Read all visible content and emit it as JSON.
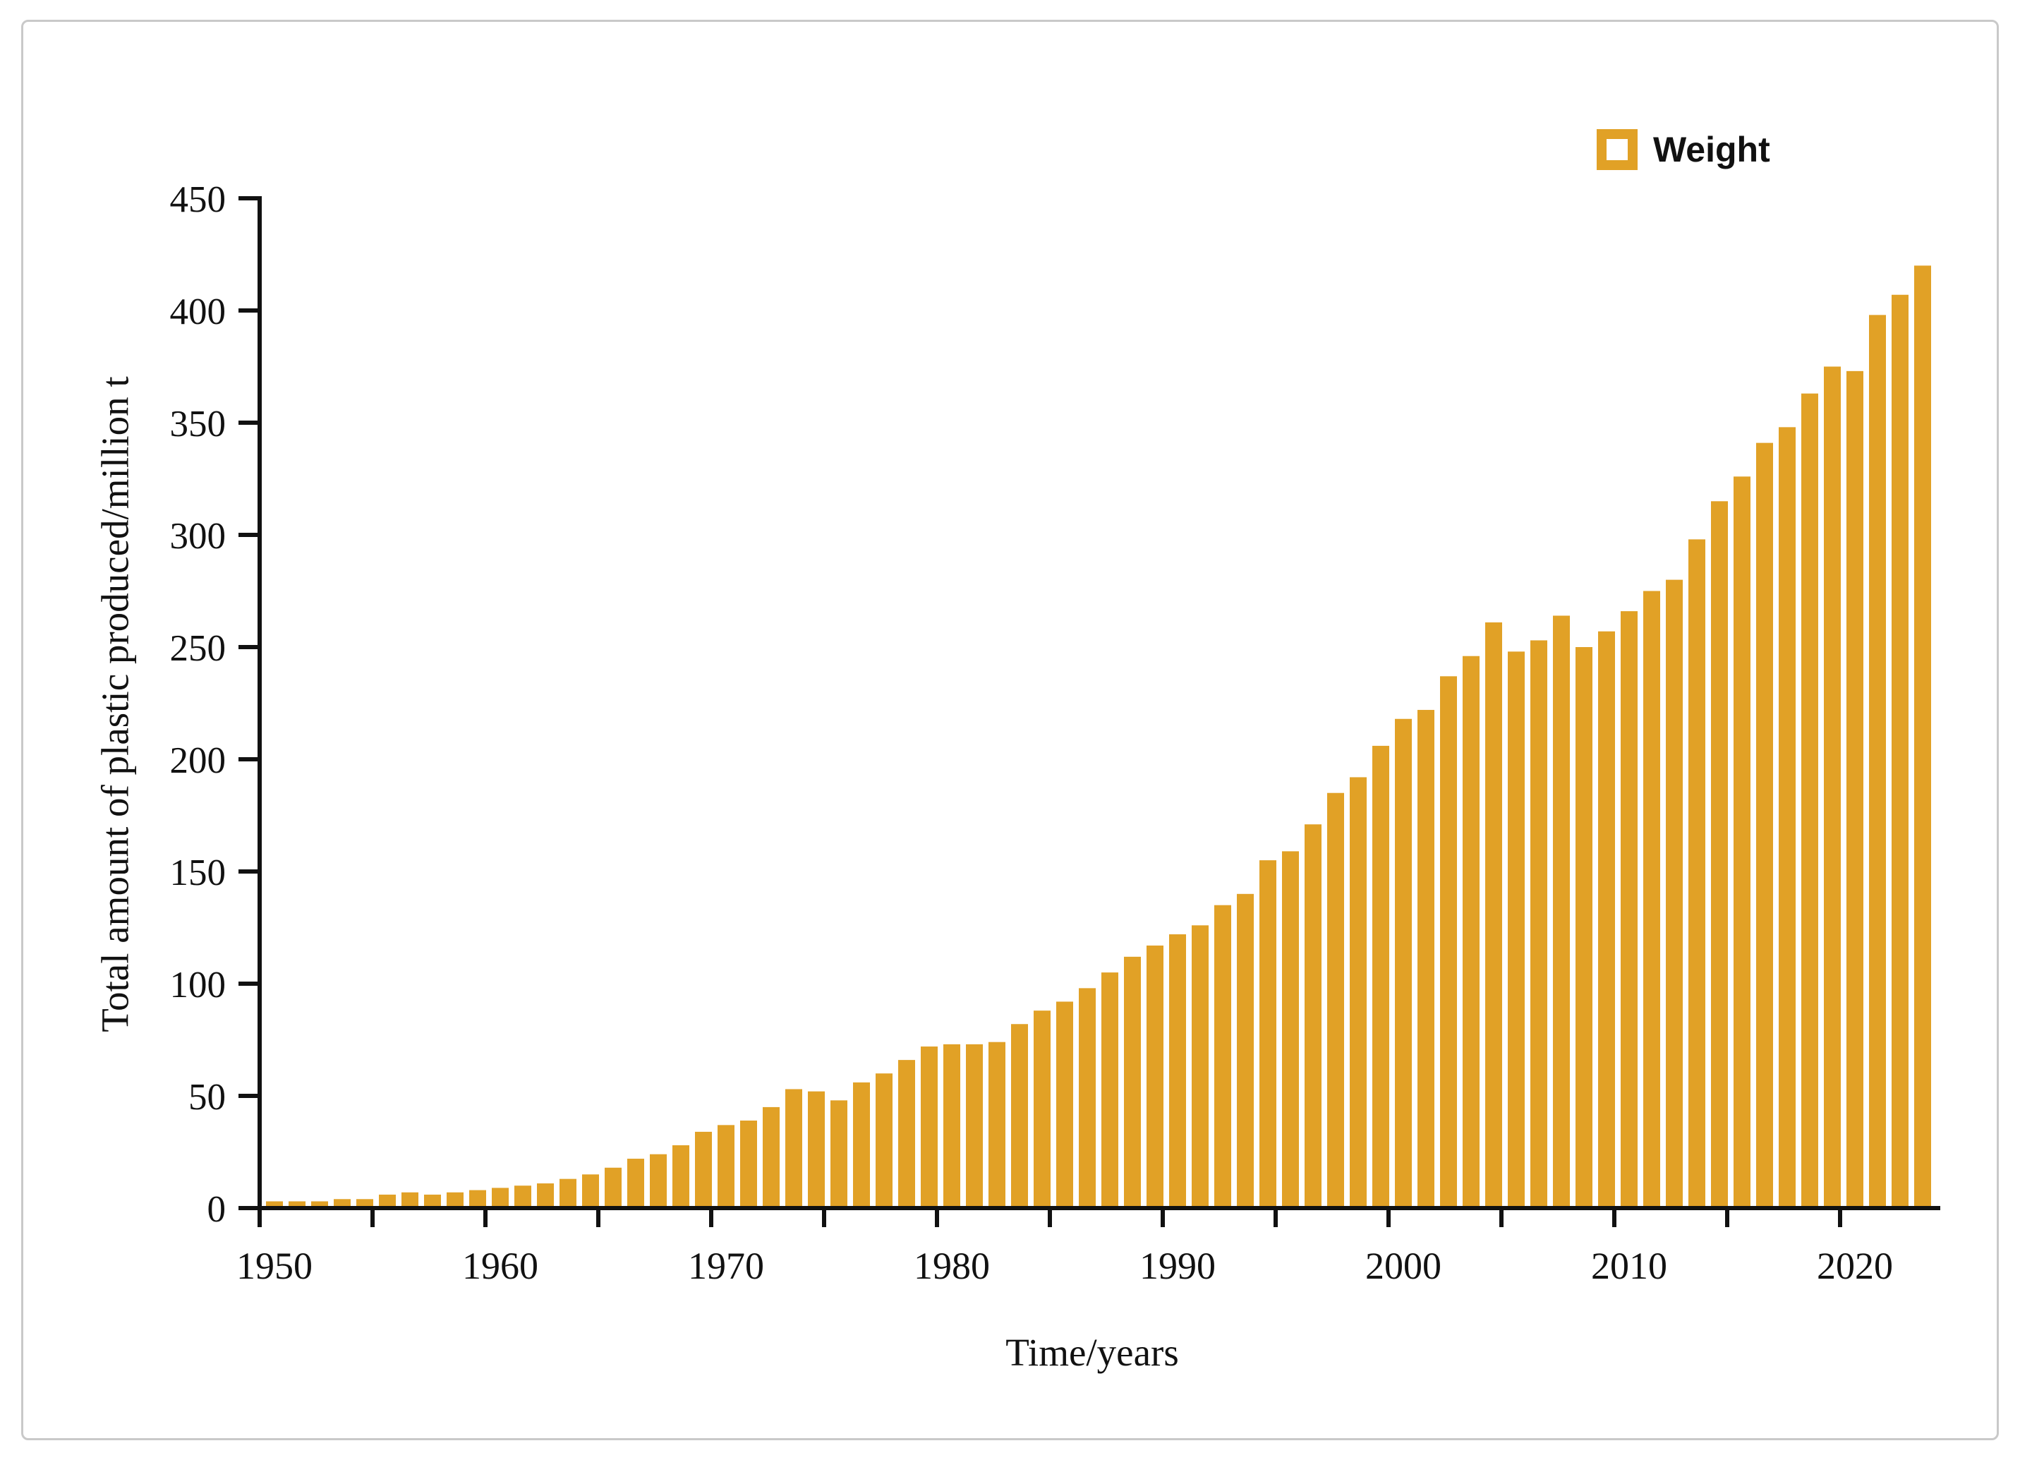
{
  "legend": {
    "label": "Weight"
  },
  "chart_data": {
    "type": "bar",
    "title": "",
    "xlabel": "Time/years",
    "ylabel": "Total amount of plastic produced/million t",
    "bar_color": "#e1a126",
    "axis_color": "#111111",
    "legend_label": "Weight",
    "legend_position": "top-right",
    "grid": false,
    "ylim": [
      0,
      450
    ],
    "ytick_step": 50,
    "xtick_minor_step_years": 5,
    "xticks_labeled": [
      1950,
      1960,
      1970,
      1980,
      1990,
      2000,
      2010,
      2020
    ],
    "years": [
      1950,
      1951,
      1952,
      1953,
      1954,
      1955,
      1956,
      1957,
      1958,
      1959,
      1960,
      1961,
      1962,
      1963,
      1964,
      1965,
      1966,
      1967,
      1968,
      1969,
      1970,
      1971,
      1972,
      1973,
      1974,
      1975,
      1976,
      1977,
      1978,
      1979,
      1980,
      1981,
      1982,
      1983,
      1984,
      1985,
      1986,
      1987,
      1988,
      1989,
      1990,
      1991,
      1992,
      1993,
      1994,
      1995,
      1996,
      1997,
      1998,
      1999,
      2000,
      2001,
      2002,
      2003,
      2004,
      2005,
      2006,
      2007,
      2008,
      2009,
      2010,
      2011,
      2012,
      2013,
      2014,
      2015,
      2016,
      2017,
      2018,
      2019,
      2020,
      2021,
      2022,
      2023
    ],
    "values": [
      3,
      3,
      3,
      4,
      4,
      6,
      7,
      6,
      7,
      8,
      9,
      10,
      11,
      13,
      15,
      18,
      22,
      24,
      28,
      34,
      37,
      39,
      45,
      53,
      52,
      48,
      56,
      60,
      66,
      72,
      73,
      73,
      74,
      82,
      88,
      92,
      98,
      105,
      112,
      117,
      122,
      126,
      135,
      140,
      155,
      159,
      171,
      185,
      192,
      206,
      218,
      222,
      237,
      246,
      261,
      248,
      253,
      264,
      250,
      257,
      266,
      275,
      280,
      298,
      315,
      326,
      341,
      348,
      363,
      375,
      373,
      398,
      407,
      420
    ]
  }
}
